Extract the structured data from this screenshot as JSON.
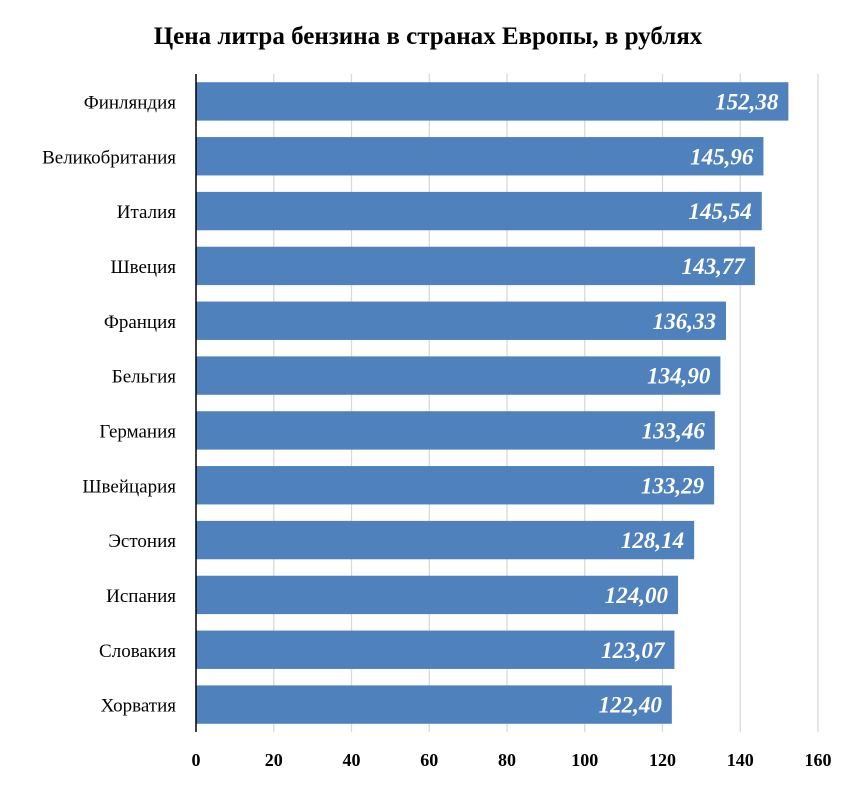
{
  "chart_data": {
    "type": "bar",
    "orientation": "horizontal",
    "title": "Цена литра бензина в странах Европы, в рублях",
    "categories": [
      "Финляндия",
      "Великобритания",
      "Италия",
      "Швеция",
      "Франция",
      "Бельгия",
      "Германия",
      "Швейцария",
      "Эстония",
      "Испания",
      "Словакия",
      "Хорватия"
    ],
    "values": [
      152.38,
      145.96,
      145.54,
      143.77,
      136.33,
      134.9,
      133.46,
      133.29,
      128.14,
      124.0,
      123.07,
      122.4
    ],
    "data_labels": [
      "152,38",
      "145,96",
      "145,54",
      "143,77",
      "136,33",
      "134,90",
      "133,46",
      "133,29",
      "128,14",
      "124,00",
      "123,07",
      "122,40"
    ],
    "xlim": [
      0,
      160
    ],
    "xticks": [
      0,
      20,
      40,
      60,
      80,
      100,
      120,
      140,
      160
    ],
    "xlabel": "",
    "ylabel": "",
    "grid": true,
    "legend": "none",
    "colors": {
      "bar": "#4f81bd",
      "label": "#ffffff",
      "grid": "#d9d9d9",
      "axis": "#000000"
    }
  }
}
